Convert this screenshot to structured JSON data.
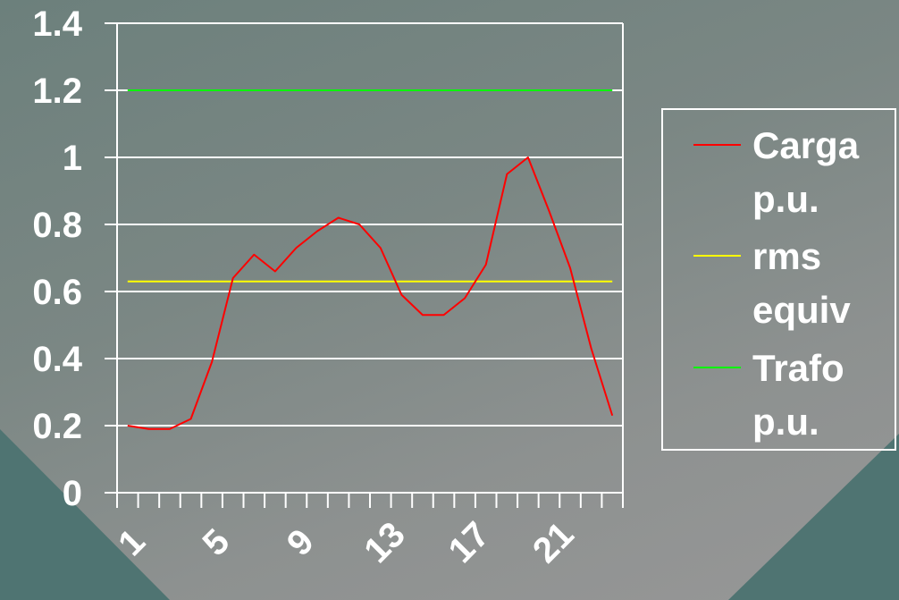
{
  "chart_data": {
    "type": "line",
    "title": "",
    "xlabel": "",
    "ylabel": "",
    "x": [
      1,
      2,
      3,
      4,
      5,
      6,
      7,
      8,
      9,
      10,
      11,
      12,
      13,
      14,
      15,
      16,
      17,
      18,
      19,
      20,
      21,
      22,
      23,
      24
    ],
    "x_tick_labels": [
      "1",
      "5",
      "9",
      "13",
      "17",
      "21"
    ],
    "x_tick_values": [
      1,
      5,
      9,
      13,
      17,
      21
    ],
    "y_tick_labels": [
      "0",
      "0.2",
      "0.4",
      "0.6",
      "0.8",
      "1",
      "1.2",
      "1.4"
    ],
    "ylim": [
      0,
      1.4
    ],
    "grid": "horizontal",
    "legend_position": "right",
    "series": [
      {
        "name": "Carga p.u.",
        "name_lines": [
          "Carga",
          "p.u."
        ],
        "color": "#ff0000",
        "values": [
          0.2,
          0.19,
          0.19,
          0.22,
          0.39,
          0.64,
          0.71,
          0.66,
          0.73,
          0.78,
          0.82,
          0.8,
          0.73,
          0.59,
          0.53,
          0.53,
          0.58,
          0.68,
          0.95,
          1.0,
          0.84,
          0.67,
          0.43,
          0.23
        ]
      },
      {
        "name": "rms equiv",
        "name_lines": [
          "rms",
          "equiv"
        ],
        "color": "#ffff00",
        "values": [
          0.63,
          0.63,
          0.63,
          0.63,
          0.63,
          0.63,
          0.63,
          0.63,
          0.63,
          0.63,
          0.63,
          0.63,
          0.63,
          0.63,
          0.63,
          0.63,
          0.63,
          0.63,
          0.63,
          0.63,
          0.63,
          0.63,
          0.63,
          0.63
        ]
      },
      {
        "name": "Trafo p.u.",
        "name_lines": [
          "Trafo",
          "p.u."
        ],
        "color": "#00ff00",
        "values": [
          1.2,
          1.2,
          1.2,
          1.2,
          1.2,
          1.2,
          1.2,
          1.2,
          1.2,
          1.2,
          1.2,
          1.2,
          1.2,
          1.2,
          1.2,
          1.2,
          1.2,
          1.2,
          1.2,
          1.2,
          1.2,
          1.2,
          1.2,
          1.2
        ]
      }
    ]
  }
}
